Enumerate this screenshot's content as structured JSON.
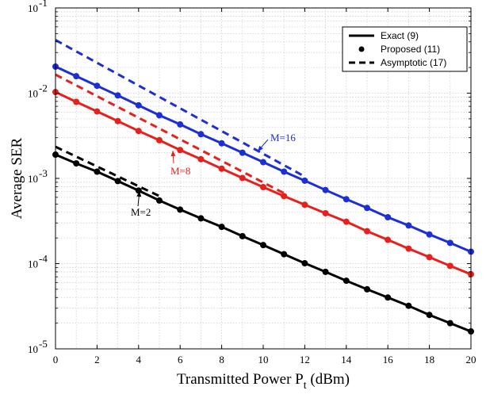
{
  "chart_data": {
    "type": "line",
    "xlabel": "Transmitted Power P",
    "xlabel_sub": "t",
    "xlabel_unit": " (dBm)",
    "ylabel": "Average SER",
    "xlim": [
      0,
      20
    ],
    "ylim": [
      1e-05,
      0.1
    ],
    "yscale": "log",
    "grid": true,
    "xticks": [
      0,
      2,
      4,
      6,
      8,
      10,
      12,
      14,
      16,
      18,
      20
    ],
    "xtick_labels": [
      "0",
      "2",
      "4",
      "6",
      "8",
      "10",
      "12",
      "14",
      "16",
      "18",
      "20"
    ],
    "yticks": [
      {
        "value": 1e-05,
        "base": "10",
        "exp": "-5"
      },
      {
        "value": 0.0001,
        "base": "10",
        "exp": "-4"
      },
      {
        "value": 0.001,
        "base": "10",
        "exp": "-3"
      },
      {
        "value": 0.01,
        "base": "10",
        "exp": "-2"
      },
      {
        "value": 0.1,
        "base": "10",
        "exp": "-1"
      }
    ],
    "legend": {
      "position": "top-right",
      "entries": [
        {
          "label": "Exact (9)",
          "style": "solid"
        },
        {
          "label": "Proposed (11)",
          "style": "marker"
        },
        {
          "label": "Asymptotic (17)",
          "style": "dashed"
        }
      ]
    },
    "x": [
      0,
      1,
      2,
      3,
      4,
      5,
      6,
      7,
      8,
      9,
      10,
      11,
      12,
      13,
      14,
      15,
      16,
      17,
      18,
      19,
      20
    ],
    "series": [
      {
        "color": "#000000",
        "annotation": "M=2",
        "exact": [
          0.0019,
          0.0015,
          0.0012,
          0.00093,
          0.00072,
          0.00055,
          0.00043,
          0.00034,
          0.00027,
          0.00021,
          0.000165,
          0.000129,
          0.000101,
          8e-05,
          6.3e-05,
          5e-05,
          4e-05,
          3.2e-05,
          2.5e-05,
          2e-05,
          1.6e-05
        ],
        "proposed": [
          0.0019,
          0.0015,
          0.0012,
          0.00093,
          0.00072,
          0.00055,
          0.00043,
          0.00034,
          0.00027,
          0.00021,
          0.000165,
          0.000129,
          0.000101,
          8e-05,
          6.3e-05,
          5e-05,
          4e-05,
          3.2e-05,
          2.5e-05,
          2e-05,
          1.6e-05
        ],
        "asymptotic_x": [
          0,
          5
        ],
        "asymptotic": [
          0.00235,
          0.00062
        ]
      },
      {
        "color": "#e8201c",
        "annotation": "M=8",
        "exact": [
          0.0103,
          0.0079,
          0.0061,
          0.0047,
          0.0036,
          0.0028,
          0.00215,
          0.00168,
          0.0013,
          0.00101,
          0.00079,
          0.00062,
          0.00049,
          0.00039,
          0.00031,
          0.00024,
          0.00019,
          0.00015,
          0.000119,
          9.4e-05,
          7.5e-05
        ],
        "proposed": [
          0.0103,
          0.0079,
          0.0061,
          0.0047,
          0.0036,
          0.0028,
          0.00215,
          0.00168,
          0.0013,
          0.00101,
          0.00079,
          0.00062,
          0.00049,
          0.00039,
          0.00031,
          0.00024,
          0.00019,
          0.00015,
          0.000119,
          9.4e-05,
          7.5e-05
        ],
        "asymptotic_x": [
          0,
          11
        ],
        "asymptotic": [
          0.0165,
          0.00067
        ]
      },
      {
        "color": "#1c2fd6",
        "annotation": "M=16",
        "exact": [
          0.0205,
          0.0158,
          0.0122,
          0.0094,
          0.0072,
          0.0055,
          0.0043,
          0.0033,
          0.00258,
          0.002,
          0.00155,
          0.0012,
          0.00094,
          0.00073,
          0.00057,
          0.00045,
          0.00035,
          0.00028,
          0.00022,
          0.000175,
          0.000138
        ],
        "proposed": [
          0.0205,
          0.0158,
          0.0122,
          0.0094,
          0.0072,
          0.0055,
          0.0043,
          0.0033,
          0.00258,
          0.002,
          0.00155,
          0.0012,
          0.00094,
          0.00073,
          0.00057,
          0.00045,
          0.00035,
          0.00028,
          0.00022,
          0.000175,
          0.000138
        ],
        "asymptotic_x": [
          0,
          12
        ],
        "asymptotic": [
          0.042,
          0.00105
        ]
      }
    ]
  }
}
